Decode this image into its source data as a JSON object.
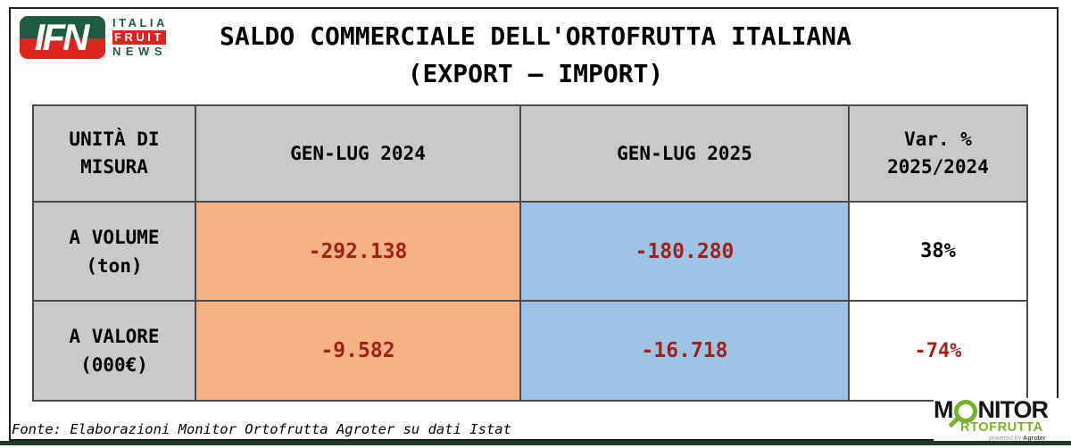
{
  "page": {
    "title_line1": "SALDO COMMERCIALE DELL'ORTOFRUTTA ITALIANA",
    "title_line2": "(EXPORT – IMPORT)",
    "source_note": "Fonte: Elaborazioni Monitor Ortofrutta Agroter su dati Istat"
  },
  "logo_ifn": {
    "acronym": "IFN",
    "line1": "ITALIA",
    "line2": "FRUIT",
    "line3": "NEWS"
  },
  "logo_monitor": {
    "m": "M",
    "nitor": "NITOR",
    "rtofrutta": "RTOFRUTTA",
    "powered_prefix": "powered by ",
    "powered_brand": "Agroter"
  },
  "table": {
    "columns": [
      "UNITÀ DI\nMISURA",
      "GEN-LUG 2024",
      "GEN-LUG 2025",
      "Var. %\n2025/2024"
    ],
    "rows": [
      {
        "label": "A VOLUME\n(ton)",
        "v2024": "-292.138",
        "v2025": "-180.280",
        "variation": "38%",
        "var_negative": false
      },
      {
        "label": "A VALORE\n(000€)",
        "v2024": "-9.582",
        "v2025": "-16.718",
        "variation": "-74%",
        "var_negative": true
      }
    ]
  },
  "chart_data": {
    "type": "table",
    "title": "SALDO COMMERCIALE DELL'ORTOFRUTTA ITALIANA (EXPORT – IMPORT)",
    "columns": [
      "UNITÀ DI MISURA",
      "GEN-LUG 2024",
      "GEN-LUG 2025",
      "Var. % 2025/2024"
    ],
    "rows": [
      [
        "A VOLUME (ton)",
        -292138,
        -180280,
        "38%"
      ],
      [
        "A VALORE (000€)",
        -9582,
        -16718,
        "-74%"
      ]
    ],
    "source": "Fonte: Elaborazioni Monitor Ortofrutta Agroter su dati Istat"
  },
  "colors": {
    "gray": "#C9C9C9",
    "orange": "#F4B183",
    "blue": "#9DC3E6",
    "negred": "#9E221B",
    "border": "#4A4A4A",
    "ifn-green": "#1D5C40",
    "ifn-red": "#DC2420",
    "monitor-green": "#76B22A"
  }
}
